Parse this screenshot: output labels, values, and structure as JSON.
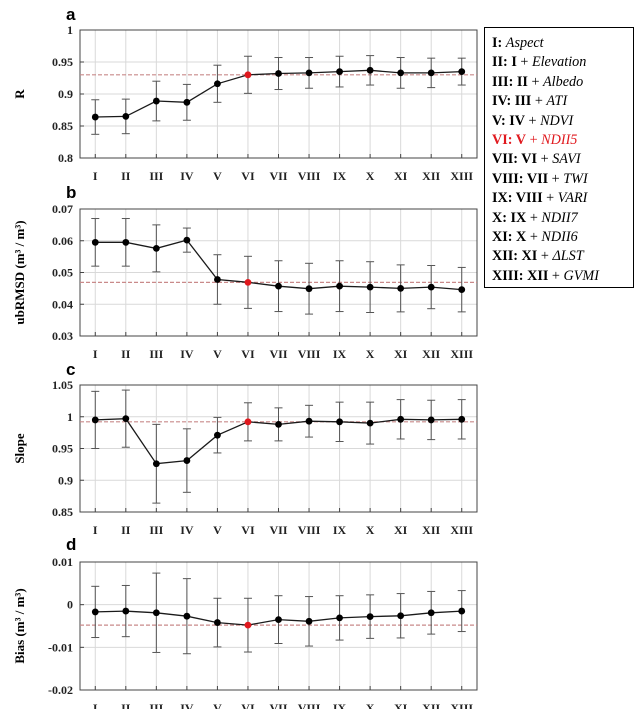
{
  "chart_data": [
    {
      "type": "line",
      "panel_label": "a",
      "ylabel": "R",
      "categories": [
        "I",
        "II",
        "III",
        "IV",
        "V",
        "VI",
        "VII",
        "VIII",
        "IX",
        "X",
        "XI",
        "XII",
        "XIII"
      ],
      "values": [
        0.864,
        0.865,
        0.889,
        0.887,
        0.916,
        0.93,
        0.932,
        0.933,
        0.935,
        0.937,
        0.933,
        0.933,
        0.935
      ],
      "error": [
        0.027,
        0.027,
        0.031,
        0.028,
        0.029,
        0.029,
        0.025,
        0.024,
        0.024,
        0.023,
        0.024,
        0.023,
        0.021
      ],
      "ylim": [
        0.8,
        1.0
      ],
      "yticks": [
        "0.8",
        "0.85",
        "0.9",
        "0.95",
        "1"
      ],
      "reference_line": 0.93,
      "highlight_index": 5,
      "grid": true
    },
    {
      "type": "line",
      "panel_label": "b",
      "ylabel": "ubRMSD (m³ / m³)",
      "categories": [
        "I",
        "II",
        "III",
        "IV",
        "V",
        "VI",
        "VII",
        "VIII",
        "IX",
        "X",
        "XI",
        "XII",
        "XIII"
      ],
      "values": [
        0.0595,
        0.0595,
        0.0576,
        0.0602,
        0.0478,
        0.0469,
        0.0457,
        0.0449,
        0.0457,
        0.0454,
        0.045,
        0.0454,
        0.0446
      ],
      "error": [
        0.0075,
        0.0075,
        0.0074,
        0.0038,
        0.0078,
        0.0082,
        0.008,
        0.008,
        0.008,
        0.008,
        0.0074,
        0.0068,
        0.007
      ],
      "ylim": [
        0.03,
        0.07
      ],
      "yticks": [
        "0.03",
        "0.04",
        "0.05",
        "0.06",
        "0.07"
      ],
      "reference_line": 0.0469,
      "highlight_index": 5,
      "grid": true
    },
    {
      "type": "line",
      "panel_label": "c",
      "ylabel": "Slope",
      "categories": [
        "I",
        "II",
        "III",
        "IV",
        "V",
        "VI",
        "VII",
        "VIII",
        "IX",
        "X",
        "XI",
        "XII",
        "XIII"
      ],
      "values": [
        0.995,
        0.997,
        0.926,
        0.931,
        0.971,
        0.992,
        0.988,
        0.993,
        0.992,
        0.99,
        0.996,
        0.995,
        0.996
      ],
      "error": [
        0.045,
        0.045,
        0.062,
        0.05,
        0.028,
        0.03,
        0.026,
        0.025,
        0.031,
        0.033,
        0.031,
        0.031,
        0.031
      ],
      "ylim": [
        0.85,
        1.05
      ],
      "yticks": [
        "0.85",
        "0.9",
        "0.95",
        "1",
        "1.05"
      ],
      "reference_line": 0.992,
      "highlight_index": 5,
      "grid": true
    },
    {
      "type": "line",
      "panel_label": "d",
      "ylabel": "Bias (m³ / m³)",
      "categories": [
        "I",
        "II",
        "III",
        "IV",
        "V",
        "VI",
        "VII",
        "VIII",
        "IX",
        "X",
        "XI",
        "XII",
        "XIII"
      ],
      "values": [
        -0.0017,
        -0.0015,
        -0.0019,
        -0.0027,
        -0.0042,
        -0.0048,
        -0.0035,
        -0.0039,
        -0.0031,
        -0.0028,
        -0.0026,
        -0.0019,
        -0.0015
      ],
      "error": [
        0.006,
        0.006,
        0.0093,
        0.0088,
        0.0057,
        0.0063,
        0.0056,
        0.0058,
        0.0052,
        0.0051,
        0.0052,
        0.005,
        0.0048
      ],
      "ylim": [
        -0.02,
        0.01
      ],
      "yticks": [
        "-0.02",
        "-0.01",
        "0",
        "0.01"
      ],
      "reference_line": -0.0048,
      "highlight_index": 5,
      "grid": true
    }
  ],
  "legend": {
    "items": [
      {
        "key": "I:",
        "rest": "Aspect"
      },
      {
        "key": "II: I",
        "rest": "Elevation"
      },
      {
        "key": "III: II",
        "rest": "Albedo"
      },
      {
        "key": "IV: III",
        "rest": "ATI"
      },
      {
        "key": "V: IV",
        "rest": "NDVI"
      },
      {
        "key": "VI: V",
        "rest": "NDII5",
        "highlight": true
      },
      {
        "key": "VII: VI",
        "rest": "SAVI"
      },
      {
        "key": "VIII: VII",
        "rest": "TWI"
      },
      {
        "key": "IX: VIII",
        "rest": "VARI"
      },
      {
        "key": "X: IX",
        "rest": "NDII7"
      },
      {
        "key": "XI: X",
        "rest": "NDII6"
      },
      {
        "key": "XII: XI",
        "rest": "ΔLST"
      },
      {
        "key": "XIII: XII",
        "rest": "GVMI"
      }
    ]
  },
  "colors": {
    "line": "#1a1a1a",
    "marker": "#000000",
    "highlight": "#e0191e",
    "reference_line": "#c98a8a",
    "grid": "#d9d9d9",
    "axis": "#444444"
  }
}
